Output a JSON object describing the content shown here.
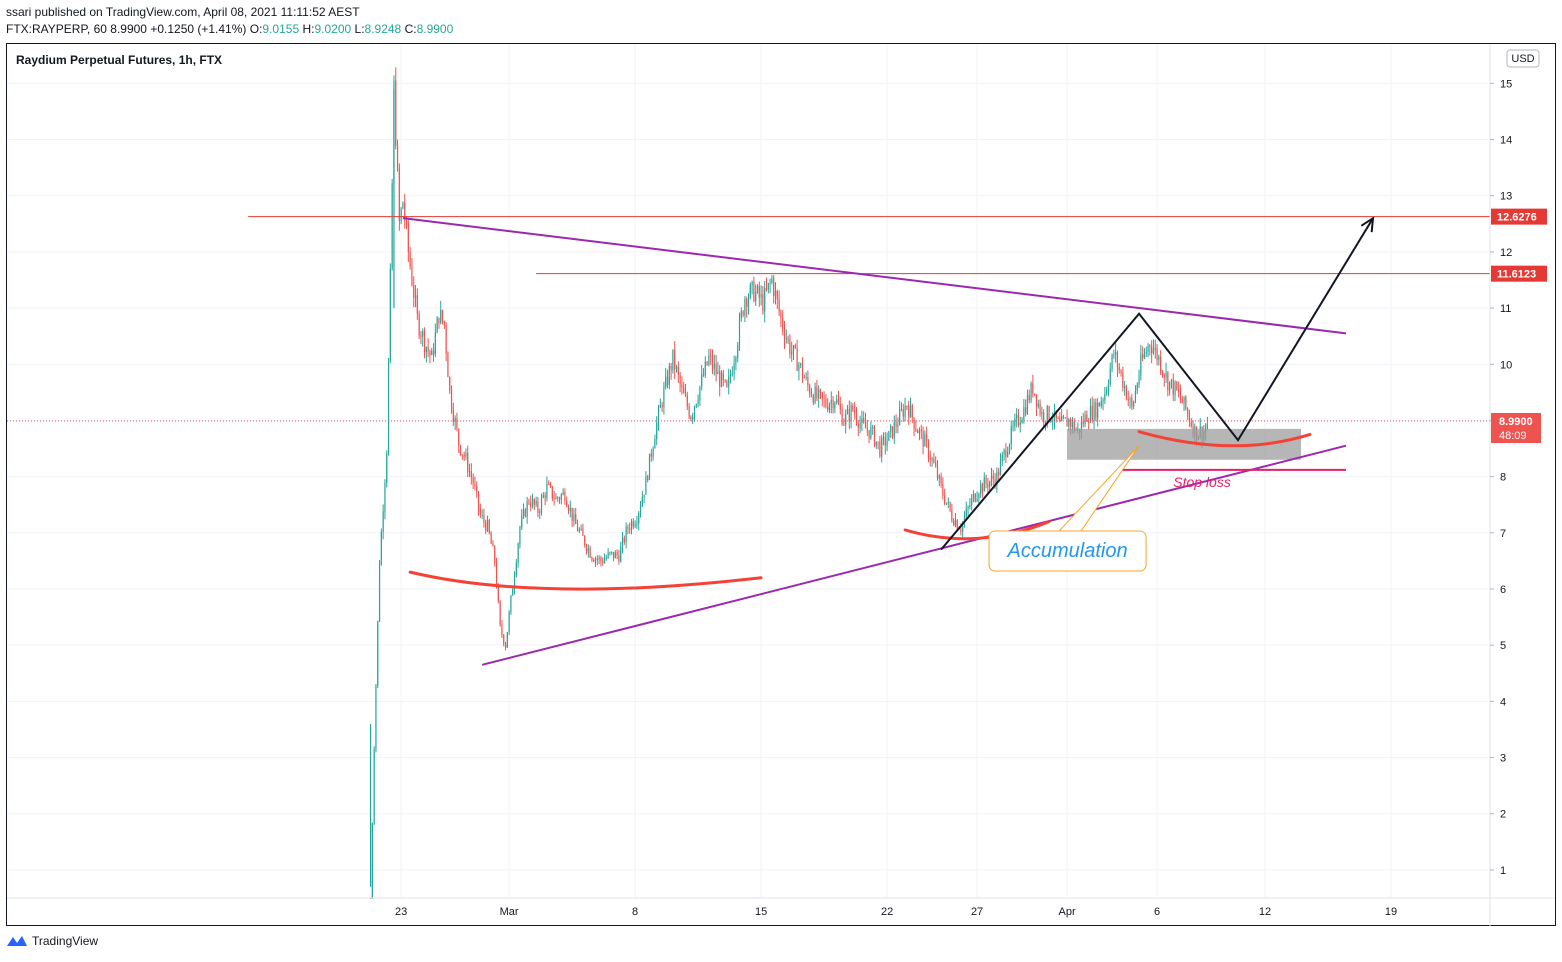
{
  "header": {
    "line1": "ssari published on TradingView.com, April 08, 2021 11:11:52 AEST",
    "symbol": "FTX:RAYPERP, 60",
    "last": "8.9900",
    "change": "+0.1250 (+1.41%)",
    "o_label": "O:",
    "o_val": "9.0155",
    "h_label": "H:",
    "h_val": "9.0200",
    "l_label": "L:",
    "l_val": "8.9248",
    "c_label": "C:",
    "c_val": "8.9900"
  },
  "footer": {
    "brand": "TradingView"
  },
  "colors": {
    "up": "#26a69a",
    "down": "#ef5350",
    "resistance": "#e53935",
    "trendline": "#9c27b0",
    "arc": "#f44336",
    "pattern": "#131722",
    "accum_zone": "#9e9e9e",
    "callout_border": "#f7a427",
    "callout_text": "#2196f3",
    "stoploss": "#e91e63"
  },
  "chart_data": {
    "type": "candlestick",
    "title": "Raydium Perpetual Futures, 1h, FTX",
    "currency": "USD",
    "x_ticks": [
      {
        "label": "23",
        "day": -6
      },
      {
        "label": "Mar",
        "day": 0
      },
      {
        "label": "8",
        "day": 7
      },
      {
        "label": "15",
        "day": 14
      },
      {
        "label": "22",
        "day": 21
      },
      {
        "label": "27",
        "day": 26
      },
      {
        "label": "Apr",
        "day": 31
      },
      {
        "label": "6",
        "day": 36
      },
      {
        "label": "12",
        "day": 42
      },
      {
        "label": "19",
        "day": 49
      }
    ],
    "y_ticks": [
      1,
      2,
      3,
      4,
      5,
      6,
      7,
      8,
      9,
      10,
      11,
      12,
      13,
      14,
      15
    ],
    "ylim": [
      0.5,
      15.7
    ],
    "xlim": [
      -27.9,
      54.5
    ],
    "price_anchors": [
      [
        -7.7,
        0.5,
        0.5
      ],
      [
        -7.5,
        3.2,
        2.5
      ],
      [
        -7.2,
        6.5,
        5.5
      ],
      [
        -7.0,
        7.5,
        6.5
      ],
      [
        -6.8,
        8.5,
        7.8
      ],
      [
        -6.6,
        11.5,
        8.5
      ],
      [
        -6.4,
        14.9,
        11.0
      ],
      [
        -6.1,
        12.5,
        12.0
      ],
      [
        -5.9,
        12.9,
        12.2
      ],
      [
        -5.6,
        12.0,
        11.0
      ],
      [
        -5.1,
        10.8,
        10.2
      ],
      [
        -4.7,
        10.4,
        10.0
      ],
      [
        -4.3,
        10.1,
        10.1
      ],
      [
        -3.9,
        10.9,
        10.4
      ],
      [
        -3.6,
        10.7,
        10.0
      ],
      [
        -3.3,
        9.5,
        9.5
      ],
      [
        -2.8,
        8.6,
        8.6
      ],
      [
        -2.4,
        8.3,
        8.4
      ],
      [
        -2.0,
        7.9,
        7.9
      ],
      [
        -1.6,
        7.3,
        7.3
      ],
      [
        -1.2,
        7.1,
        7.0
      ],
      [
        -0.8,
        6.5,
        6.2
      ],
      [
        -0.5,
        5.3,
        5.0
      ],
      [
        -0.2,
        5.0,
        4.9
      ],
      [
        0.1,
        5.8,
        5.8
      ],
      [
        0.6,
        7.1,
        6.8
      ],
      [
        1.1,
        7.6,
        7.4
      ],
      [
        1.6,
        7.4,
        7.2
      ],
      [
        2.1,
        7.8,
        7.6
      ],
      [
        2.6,
        7.6,
        7.4
      ],
      [
        3.1,
        7.7,
        7.6
      ],
      [
        3.6,
        7.2,
        7.0
      ],
      [
        4.1,
        6.9,
        6.7
      ],
      [
        4.6,
        6.6,
        6.4
      ],
      [
        5.1,
        6.5,
        6.5
      ],
      [
        5.6,
        6.6,
        6.7
      ],
      [
        6.1,
        6.6,
        6.7
      ],
      [
        6.6,
        7.1,
        7.1
      ],
      [
        7.1,
        7.3,
        7.3
      ],
      [
        7.6,
        7.9,
        7.9
      ],
      [
        8.1,
        8.8,
        8.8
      ],
      [
        8.6,
        9.5,
        9.4
      ],
      [
        9.1,
        10.1,
        9.8
      ],
      [
        9.6,
        9.5,
        9.4
      ],
      [
        10.1,
        9.1,
        9.1
      ],
      [
        10.6,
        9.6,
        9.5
      ],
      [
        11.1,
        10.1,
        10.1
      ],
      [
        11.6,
        9.8,
        9.8
      ],
      [
        12.1,
        9.5,
        9.5
      ],
      [
        12.6,
        10.3,
        10.3
      ],
      [
        13.1,
        11.2,
        11.1
      ],
      [
        13.6,
        11.3,
        11.2
      ],
      [
        14.1,
        11.1,
        11.1
      ],
      [
        14.6,
        11.5,
        11.4
      ],
      [
        15.1,
        10.8,
        10.8
      ],
      [
        15.6,
        10.3,
        10.2
      ],
      [
        16.1,
        10.0,
        9.8
      ],
      [
        16.6,
        9.6,
        9.5
      ],
      [
        17.1,
        9.4,
        9.4
      ],
      [
        17.6,
        9.3,
        9.3
      ],
      [
        18.1,
        9.4,
        9.4
      ],
      [
        18.6,
        9.0,
        8.9
      ],
      [
        19.1,
        9.2,
        9.2
      ],
      [
        19.6,
        8.9,
        8.9
      ],
      [
        20.1,
        8.8,
        8.7
      ],
      [
        20.6,
        8.5,
        8.5
      ],
      [
        21.1,
        8.7,
        8.7
      ],
      [
        21.6,
        9.0,
        9.0
      ],
      [
        22.1,
        9.3,
        9.3
      ],
      [
        22.6,
        8.9,
        8.9
      ],
      [
        23.1,
        8.6,
        8.6
      ],
      [
        23.6,
        8.2,
        8.2
      ],
      [
        24.1,
        7.7,
        7.7
      ],
      [
        24.6,
        7.3,
        7.3
      ],
      [
        25.1,
        7.1,
        7.1
      ],
      [
        25.6,
        7.5,
        7.5
      ],
      [
        26.1,
        7.8,
        7.8
      ],
      [
        26.6,
        7.9,
        7.9
      ],
      [
        27.1,
        8.0,
        8.0
      ],
      [
        27.6,
        8.5,
        8.5
      ],
      [
        28.1,
        8.9,
        8.9
      ],
      [
        28.6,
        9.2,
        9.2
      ],
      [
        29.1,
        9.6,
        9.6
      ],
      [
        29.6,
        9.1,
        9.1
      ],
      [
        30.1,
        9.1,
        9.1
      ],
      [
        30.6,
        8.9,
        8.9
      ],
      [
        31.1,
        9.0,
        9.0
      ],
      [
        31.6,
        8.8,
        8.8
      ],
      [
        32.1,
        9.1,
        9.1
      ],
      [
        32.6,
        9.2,
        9.2
      ],
      [
        33.1,
        9.5,
        9.5
      ],
      [
        33.6,
        10.2,
        10.2
      ],
      [
        34.1,
        9.7,
        9.7
      ],
      [
        34.6,
        9.2,
        9.2
      ],
      [
        35.1,
        10.0,
        10.0
      ],
      [
        35.6,
        10.4,
        10.4
      ],
      [
        36.1,
        10.1,
        10.1
      ],
      [
        36.6,
        9.7,
        9.7
      ],
      [
        37.1,
        9.5,
        9.5
      ],
      [
        37.6,
        9.2,
        9.2
      ],
      [
        38.1,
        8.8,
        8.8
      ],
      [
        38.6,
        8.8,
        8.8
      ],
      [
        38.9,
        8.99,
        8.99
      ]
    ],
    "price_lines": [
      {
        "value": 12.6276,
        "label": "12.6276",
        "from_day": -14.5
      },
      {
        "value": 11.6123,
        "label": "11.6123",
        "from_day": 1.5
      }
    ],
    "last_price": {
      "value": 8.99,
      "label": "8.9900",
      "countdown": "48:09"
    },
    "drawings": {
      "upper_trendline": [
        [
          -5.9,
          12.6
        ],
        [
          46.5,
          10.55
        ]
      ],
      "lower_trendline": [
        [
          -1.5,
          4.65
        ],
        [
          46.5,
          8.55
        ]
      ],
      "black_path": [
        [
          24.0,
          6.7
        ],
        [
          35.0,
          10.9
        ],
        [
          40.5,
          8.65
        ],
        [
          48.0,
          12.6
        ]
      ],
      "arcs": [
        {
          "from": [
            -5.5,
            6.3
          ],
          "mid": [
            3.0,
            6.0
          ],
          "to": [
            14.0,
            6.2
          ]
        },
        {
          "from": [
            22.0,
            7.05
          ],
          "mid": [
            26.0,
            6.9
          ],
          "to": [
            30.0,
            7.2
          ]
        },
        {
          "from": [
            35.0,
            8.8
          ],
          "mid": [
            40.0,
            8.55
          ],
          "to": [
            44.5,
            8.75
          ]
        }
      ],
      "accum_zone": {
        "from_day": 31.0,
        "to_day": 44.0,
        "low": 8.3,
        "high": 8.85
      },
      "stop_loss": {
        "value": 8.12,
        "from_day": 34.0,
        "to_day": 46.5,
        "label": "Stop loss"
      },
      "callout": {
        "text": "Accumulation",
        "target": [
          35.0,
          8.55
        ],
        "day": 31.0,
        "price": 6.8
      }
    }
  }
}
